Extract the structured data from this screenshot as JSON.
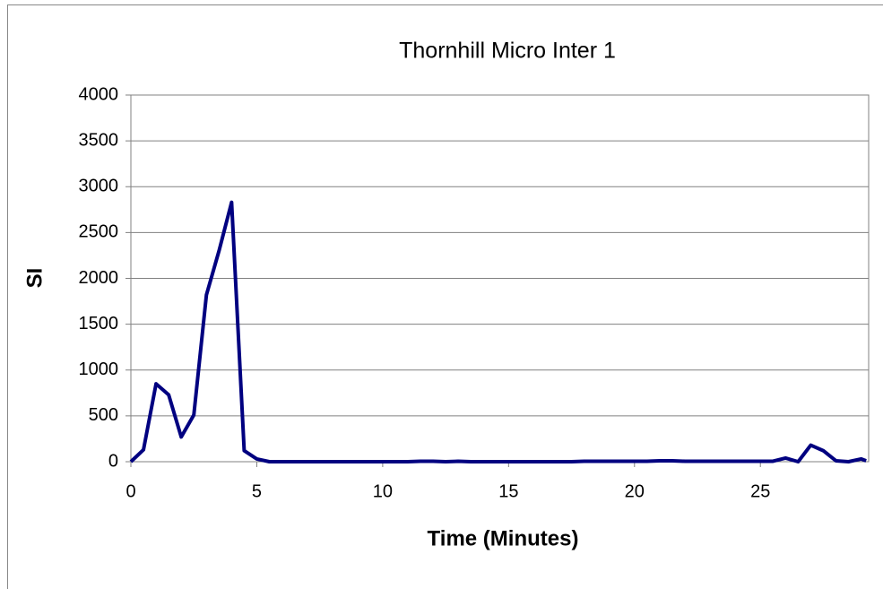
{
  "chart_data": {
    "type": "line",
    "title": "Thornhill Micro Inter 1",
    "x_label": "Time (Minutes)",
    "y_label": "SI",
    "x": [
      0,
      0.5,
      1,
      1.5,
      2,
      2.5,
      3,
      3.5,
      4,
      4.5,
      5,
      5.5,
      6,
      6.5,
      7,
      7.5,
      8,
      8.5,
      9,
      9.5,
      10,
      10.5,
      11,
      11.5,
      12,
      12.5,
      13,
      13.5,
      14,
      14.5,
      15,
      15.5,
      16,
      16.5,
      17,
      17.5,
      18,
      18.5,
      19,
      19.5,
      20,
      20.5,
      21,
      21.5,
      22,
      22.5,
      23,
      23.5,
      24,
      24.5,
      25,
      25.5,
      26,
      26.5,
      27,
      27.5,
      28,
      28.5,
      29,
      29.2
    ],
    "series": [
      {
        "name": "SI",
        "color": "#000080",
        "values": [
          0,
          130,
          850,
          730,
          270,
          510,
          1820,
          2300,
          2830,
          120,
          30,
          0,
          0,
          0,
          0,
          0,
          0,
          0,
          0,
          0,
          0,
          0,
          0,
          5,
          5,
          0,
          5,
          0,
          0,
          0,
          0,
          0,
          0,
          0,
          0,
          0,
          5,
          5,
          5,
          5,
          5,
          5,
          10,
          10,
          5,
          5,
          5,
          5,
          5,
          5,
          5,
          5,
          40,
          0,
          180,
          120,
          10,
          0,
          30,
          10
        ]
      }
    ],
    "xlim": [
      0,
      29.3
    ],
    "xticks": [
      0,
      5,
      10,
      15,
      20,
      25
    ],
    "ylim": [
      0,
      4000
    ],
    "yticks": [
      0,
      500,
      1000,
      1500,
      2000,
      2500,
      3000,
      3500,
      4000
    ],
    "grid": true
  }
}
